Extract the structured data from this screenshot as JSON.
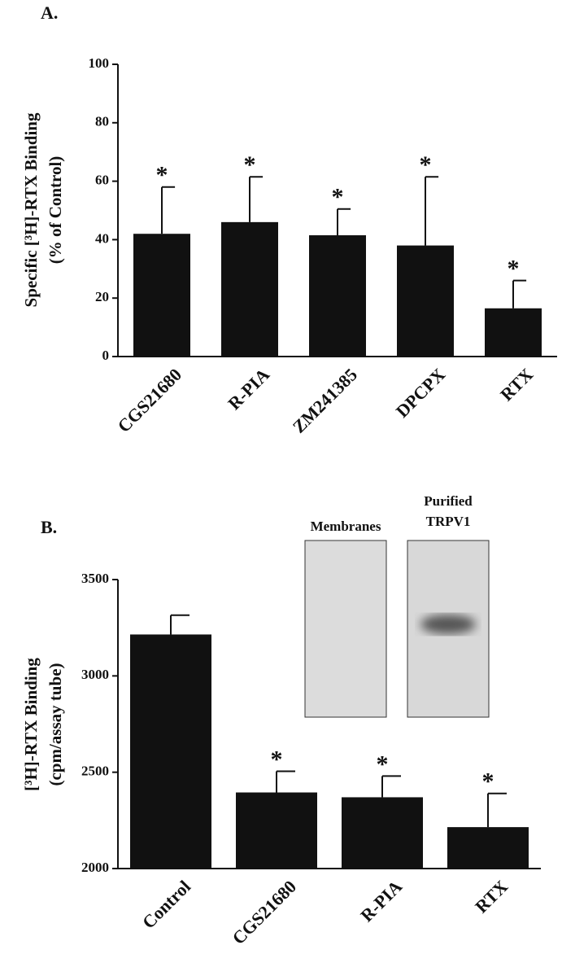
{
  "chart_data": [
    {
      "type": "bar",
      "panel_label": "A.",
      "y_label": [
        "Specific [³H]-RTX Binding",
        "(% of Control)"
      ],
      "categories": [
        "CGS21680",
        "R-PIA",
        "ZM241385",
        "DPCPX",
        "RTX"
      ],
      "values": [
        42,
        46,
        41.5,
        38,
        16.5
      ],
      "errors": [
        16,
        15.5,
        9,
        23.5,
        9.5
      ],
      "significance": [
        "*",
        "*",
        "*",
        "*",
        "*"
      ],
      "color": "#111111",
      "ylim": [
        0,
        100
      ],
      "yticks": [
        0,
        20,
        40,
        60,
        80,
        100
      ]
    },
    {
      "type": "bar",
      "panel_label": "B.",
      "y_label": [
        "[³H]-RTX Binding",
        "(cpm/assay tube)"
      ],
      "categories": [
        "Control",
        "CGS21680",
        "R-PIA",
        "RTX"
      ],
      "values": [
        3215,
        2395,
        2370,
        2215
      ],
      "errors": [
        100,
        110,
        110,
        175
      ],
      "significance": [
        null,
        "*",
        "*",
        "*"
      ],
      "inset_labels": [
        "Membranes",
        "Purified",
        "TRPV1"
      ],
      "color": "#111111",
      "ylim": [
        2000,
        3500
      ],
      "yticks": [
        2000,
        2500,
        3000,
        3500
      ]
    }
  ]
}
